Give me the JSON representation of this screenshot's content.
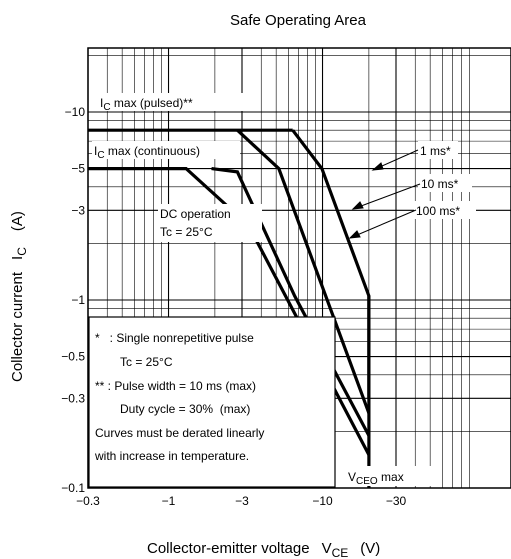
{
  "chart_data": {
    "type": "line",
    "title": "Safe Operating Area",
    "xlabel": "Collector-emitter voltage",
    "xlabel_symbol": "V",
    "xlabel_sub": "CE",
    "xlabel_unit": "(V)",
    "ylabel": "Collector current",
    "ylabel_symbol": "I",
    "ylabel_sub": "C",
    "ylabel_unit": "(A)",
    "x_scale": "log",
    "y_scale": "log",
    "x_axis_direction": "increasing magnitude of negative voltage",
    "xlim": [
      -0.3,
      -50
    ],
    "ylim": [
      -0.1,
      -30
    ],
    "x_ticks": [
      {
        "value": -0.3,
        "label": "−0.3"
      },
      {
        "value": -1,
        "label": "−1"
      },
      {
        "value": -3,
        "label": "−3"
      },
      {
        "value": -10,
        "label": "−10"
      },
      {
        "value": -30,
        "label": "−30"
      }
    ],
    "y_ticks": [
      {
        "value": -0.1,
        "label": "−0.1"
      },
      {
        "value": -0.3,
        "label": "−0.3"
      },
      {
        "value": -0.5,
        "label": "−0.5"
      },
      {
        "value": -1,
        "label": "−1"
      },
      {
        "value": -3,
        "label": "−3"
      },
      {
        "value": -5,
        "label": "−5"
      },
      {
        "value": -10,
        "label": "−10"
      }
    ],
    "grid": true,
    "series": [
      {
        "name": "IC max (pulsed)**",
        "x": [
          -0.3,
          -3,
          -6.4
        ],
        "y": [
          -8,
          -8,
          -8
        ]
      },
      {
        "name": "1 ms*",
        "x": [
          -6.4,
          -9.9,
          -20,
          -20
        ],
        "y": [
          -8,
          -5,
          -1.05,
          -0.3
        ]
      },
      {
        "name": "10 ms*",
        "x": [
          -2.8,
          -5.2,
          -20
        ],
        "y": [
          -8,
          -5,
          -0.25
        ]
      },
      {
        "name": "100 ms*",
        "x": [
          -1.9,
          -2.8,
          -6.6,
          -20
        ],
        "y": [
          -5,
          -4.8,
          -1.05,
          -0.19
        ]
      },
      {
        "name": "DC operation Tc = 25°C",
        "x": [
          -0.3,
          -1.3,
          -3.3,
          -20
        ],
        "y": [
          -5,
          -5,
          -2.5,
          -0.15
        ]
      },
      {
        "name": "VCEO max",
        "x": [
          -20,
          -20
        ],
        "y": [
          -1.05,
          -0.1
        ]
      }
    ],
    "annotations": {
      "ic_pulsed": {
        "main": "I",
        "sub": "C",
        "rest": " max (pulsed)**"
      },
      "ic_cont": {
        "main": "I",
        "sub": "C",
        "rest": " max (continuous)"
      },
      "dc_line1": "DC operation",
      "dc_line2": "Tc = 25°C",
      "label_1ms": "1 ms*",
      "label_10ms": "10 ms*",
      "label_100ms": "100 ms*",
      "vceo": {
        "main": "V",
        "sub": "CEO",
        "rest": " max"
      }
    },
    "notes": [
      "*   : Single nonrepetitive pulse",
      "Tc = 25°C",
      "** : Pulse width = 10 ms (max)",
      "Duty cycle = 30%  (max)",
      "Curves must be derated linearly",
      "with increase in temperature."
    ]
  }
}
